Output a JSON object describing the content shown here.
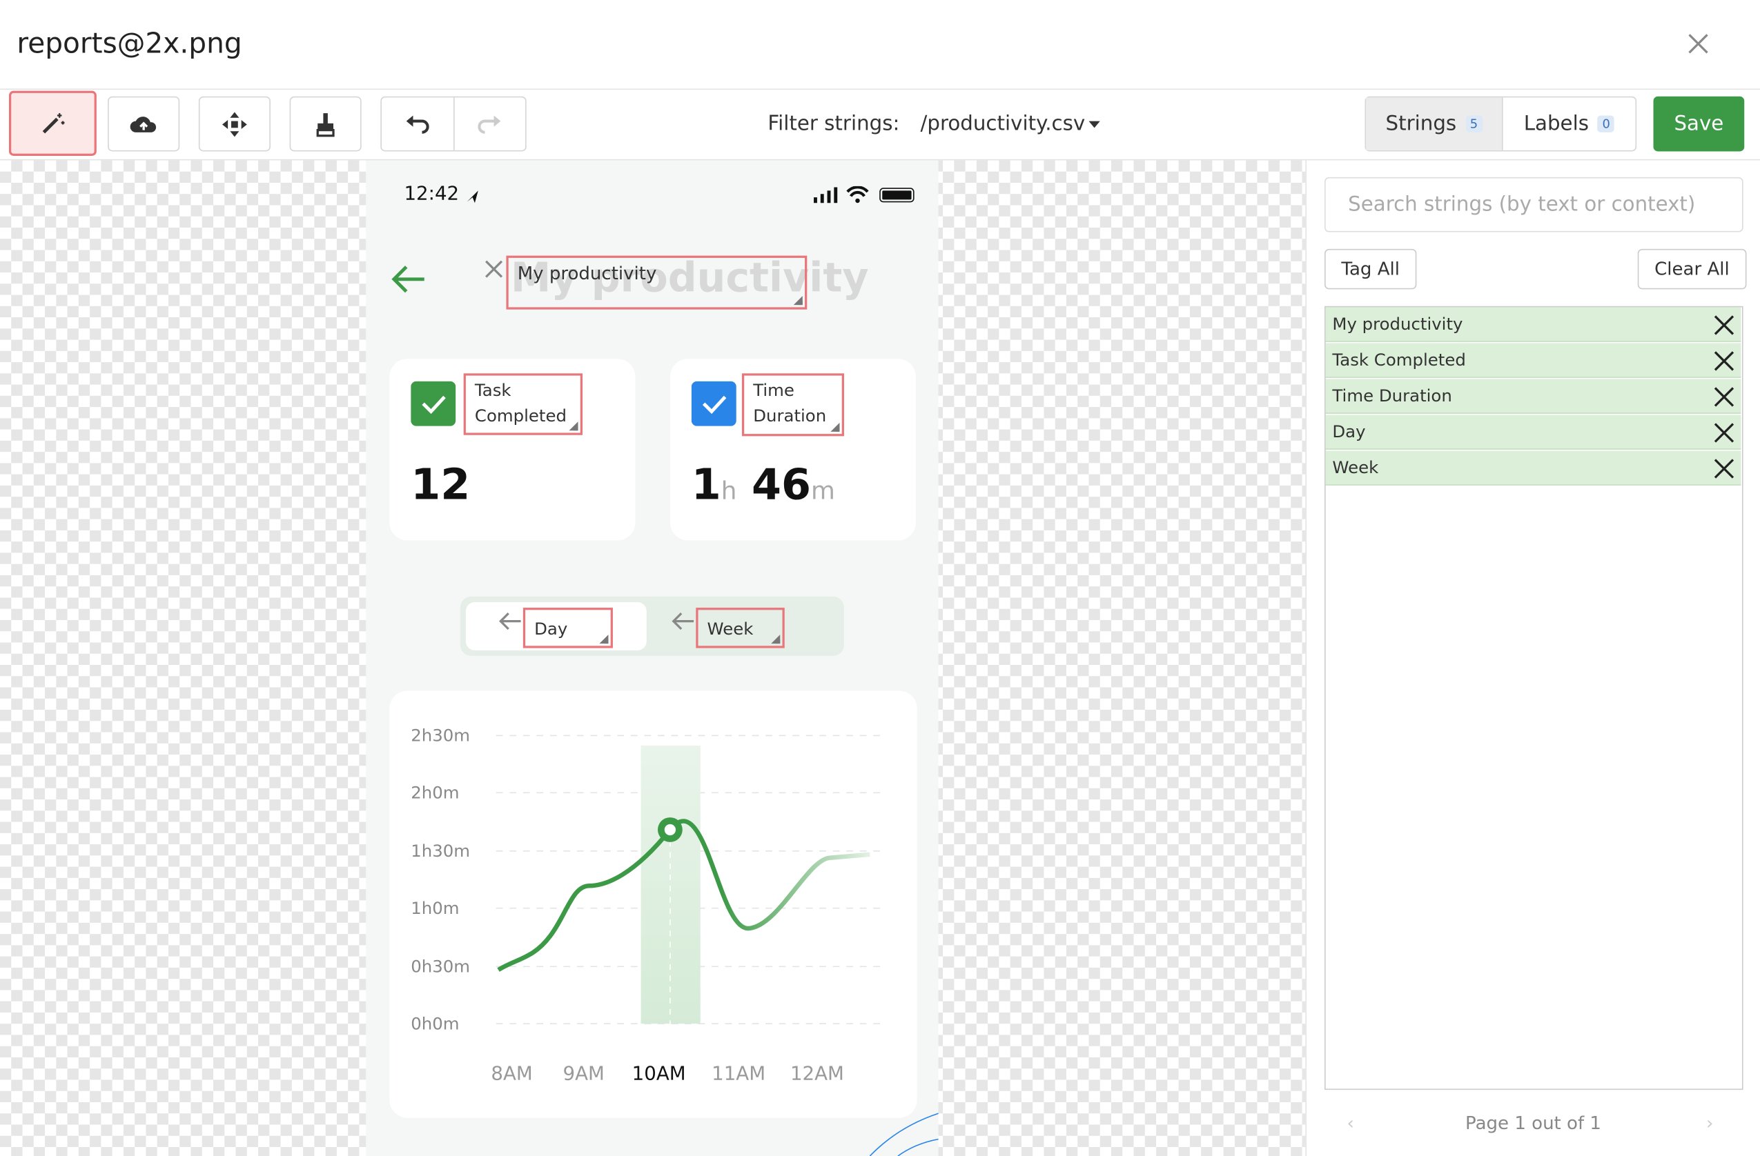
{
  "dialog": {
    "title": "reports@2x.png"
  },
  "toolbar": {
    "filter_label": "Filter strings:",
    "filter_value": "/productivity.csv",
    "tabs": [
      {
        "label": "Strings",
        "count": 5
      },
      {
        "label": "Labels",
        "count": 0
      }
    ],
    "save": "Save"
  },
  "phone": {
    "time": "12:42",
    "header": "My productivity",
    "cards": [
      {
        "title": "Task Completed",
        "value": 12
      },
      {
        "title": "Time Duration",
        "hours": 1,
        "hours_unit": "h",
        "minutes": 46,
        "minutes_unit": "m"
      }
    ],
    "segments": [
      "Day",
      "Week"
    ],
    "chart": {
      "yticks": [
        "2h30m",
        "2h0m",
        "1h30m",
        "1h0m",
        "0h30m",
        "0h0m"
      ],
      "xticks": [
        "8AM",
        "9AM",
        "10AM",
        "11AM",
        "12AM"
      ]
    }
  },
  "overlays": [
    "My productivity",
    "Task Completed",
    "Time Duration",
    "Day",
    "Week"
  ],
  "sidebar": {
    "search_placeholder": "Search strings (by text or context)",
    "tag_all": "Tag All",
    "clear_all": "Clear All",
    "strings": [
      "My productivity",
      "Task Completed",
      "Time Duration",
      "Day",
      "Week"
    ],
    "pagination": "Page 1 out of 1"
  }
}
